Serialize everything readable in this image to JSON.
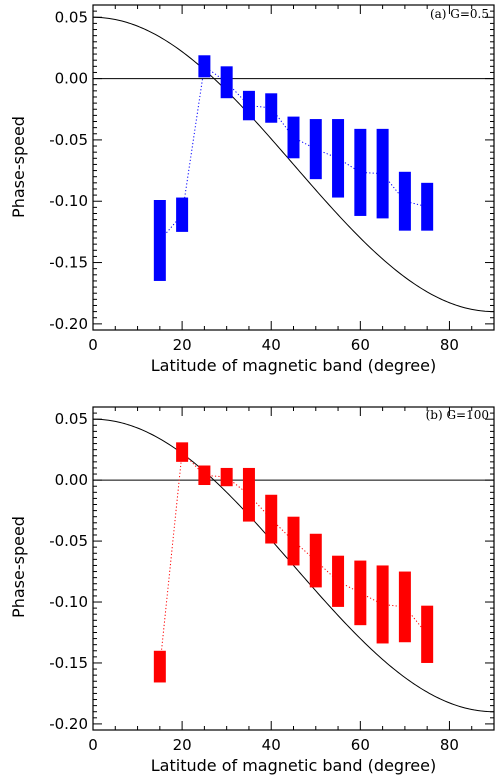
{
  "chart_data": [
    {
      "type": "bar",
      "panel_label": "(a) G=0.5",
      "xlabel": "Latitude of magnetic band (degree)",
      "ylabel": "Phase-speed",
      "xlim": [
        0,
        90
      ],
      "ylim": [
        -0.205,
        0.06
      ],
      "xticks": [
        0,
        20,
        40,
        60,
        80
      ],
      "xtick_labels": [
        "0",
        "20",
        "40",
        "60",
        "80"
      ],
      "yticks": [
        0.05,
        0.0,
        -0.05,
        -0.1,
        -0.15,
        -0.2
      ],
      "ytick_labels": [
        "0.05",
        "0.00",
        "-0.05",
        "-0.10",
        "-0.15",
        "-0.20"
      ],
      "color": "#0000ff",
      "grid": false,
      "reference_curve": {
        "formula": "0.05 - 0.24*sin(latitude)^2",
        "color": "#000000"
      },
      "zero_line": true,
      "x": [
        15,
        20,
        25,
        30,
        35,
        40,
        45,
        50,
        55,
        60,
        65,
        70,
        75
      ],
      "low": [
        -0.165,
        -0.125,
        0.001,
        -0.016,
        -0.034,
        -0.036,
        -0.065,
        -0.082,
        -0.097,
        -0.112,
        -0.114,
        -0.124,
        -0.124
      ],
      "high": [
        -0.099,
        -0.097,
        0.019,
        0.01,
        -0.01,
        -0.012,
        -0.031,
        -0.033,
        -0.033,
        -0.041,
        -0.041,
        -0.076,
        -0.085
      ]
    },
    {
      "type": "bar",
      "panel_label": "(b) G=100",
      "xlabel": "Latitude of magnetic band (degree)",
      "ylabel": "Phase-speed",
      "xlim": [
        0,
        90
      ],
      "ylim": [
        -0.205,
        0.06
      ],
      "xticks": [
        0,
        20,
        40,
        60,
        80
      ],
      "xtick_labels": [
        "0",
        "20",
        "40",
        "60",
        "80"
      ],
      "yticks": [
        0.05,
        0.0,
        -0.05,
        -0.1,
        -0.15,
        -0.2
      ],
      "ytick_labels": [
        "0.05",
        "0.00",
        "-0.05",
        "-0.10",
        "-0.15",
        "-0.20"
      ],
      "color": "#ff0000",
      "grid": false,
      "reference_curve": {
        "formula": "0.05 - 0.24*sin(latitude)^2",
        "color": "#000000"
      },
      "zero_line": true,
      "x": [
        15,
        20,
        25,
        30,
        35,
        40,
        45,
        50,
        55,
        60,
        65,
        70,
        75
      ],
      "low": [
        -0.166,
        0.015,
        -0.004,
        -0.005,
        -0.034,
        -0.052,
        -0.07,
        -0.088,
        -0.104,
        -0.119,
        -0.134,
        -0.133,
        -0.15
      ],
      "high": [
        -0.14,
        0.031,
        0.012,
        0.01,
        0.01,
        -0.012,
        -0.03,
        -0.044,
        -0.062,
        -0.066,
        -0.07,
        -0.075,
        -0.103
      ]
    }
  ]
}
